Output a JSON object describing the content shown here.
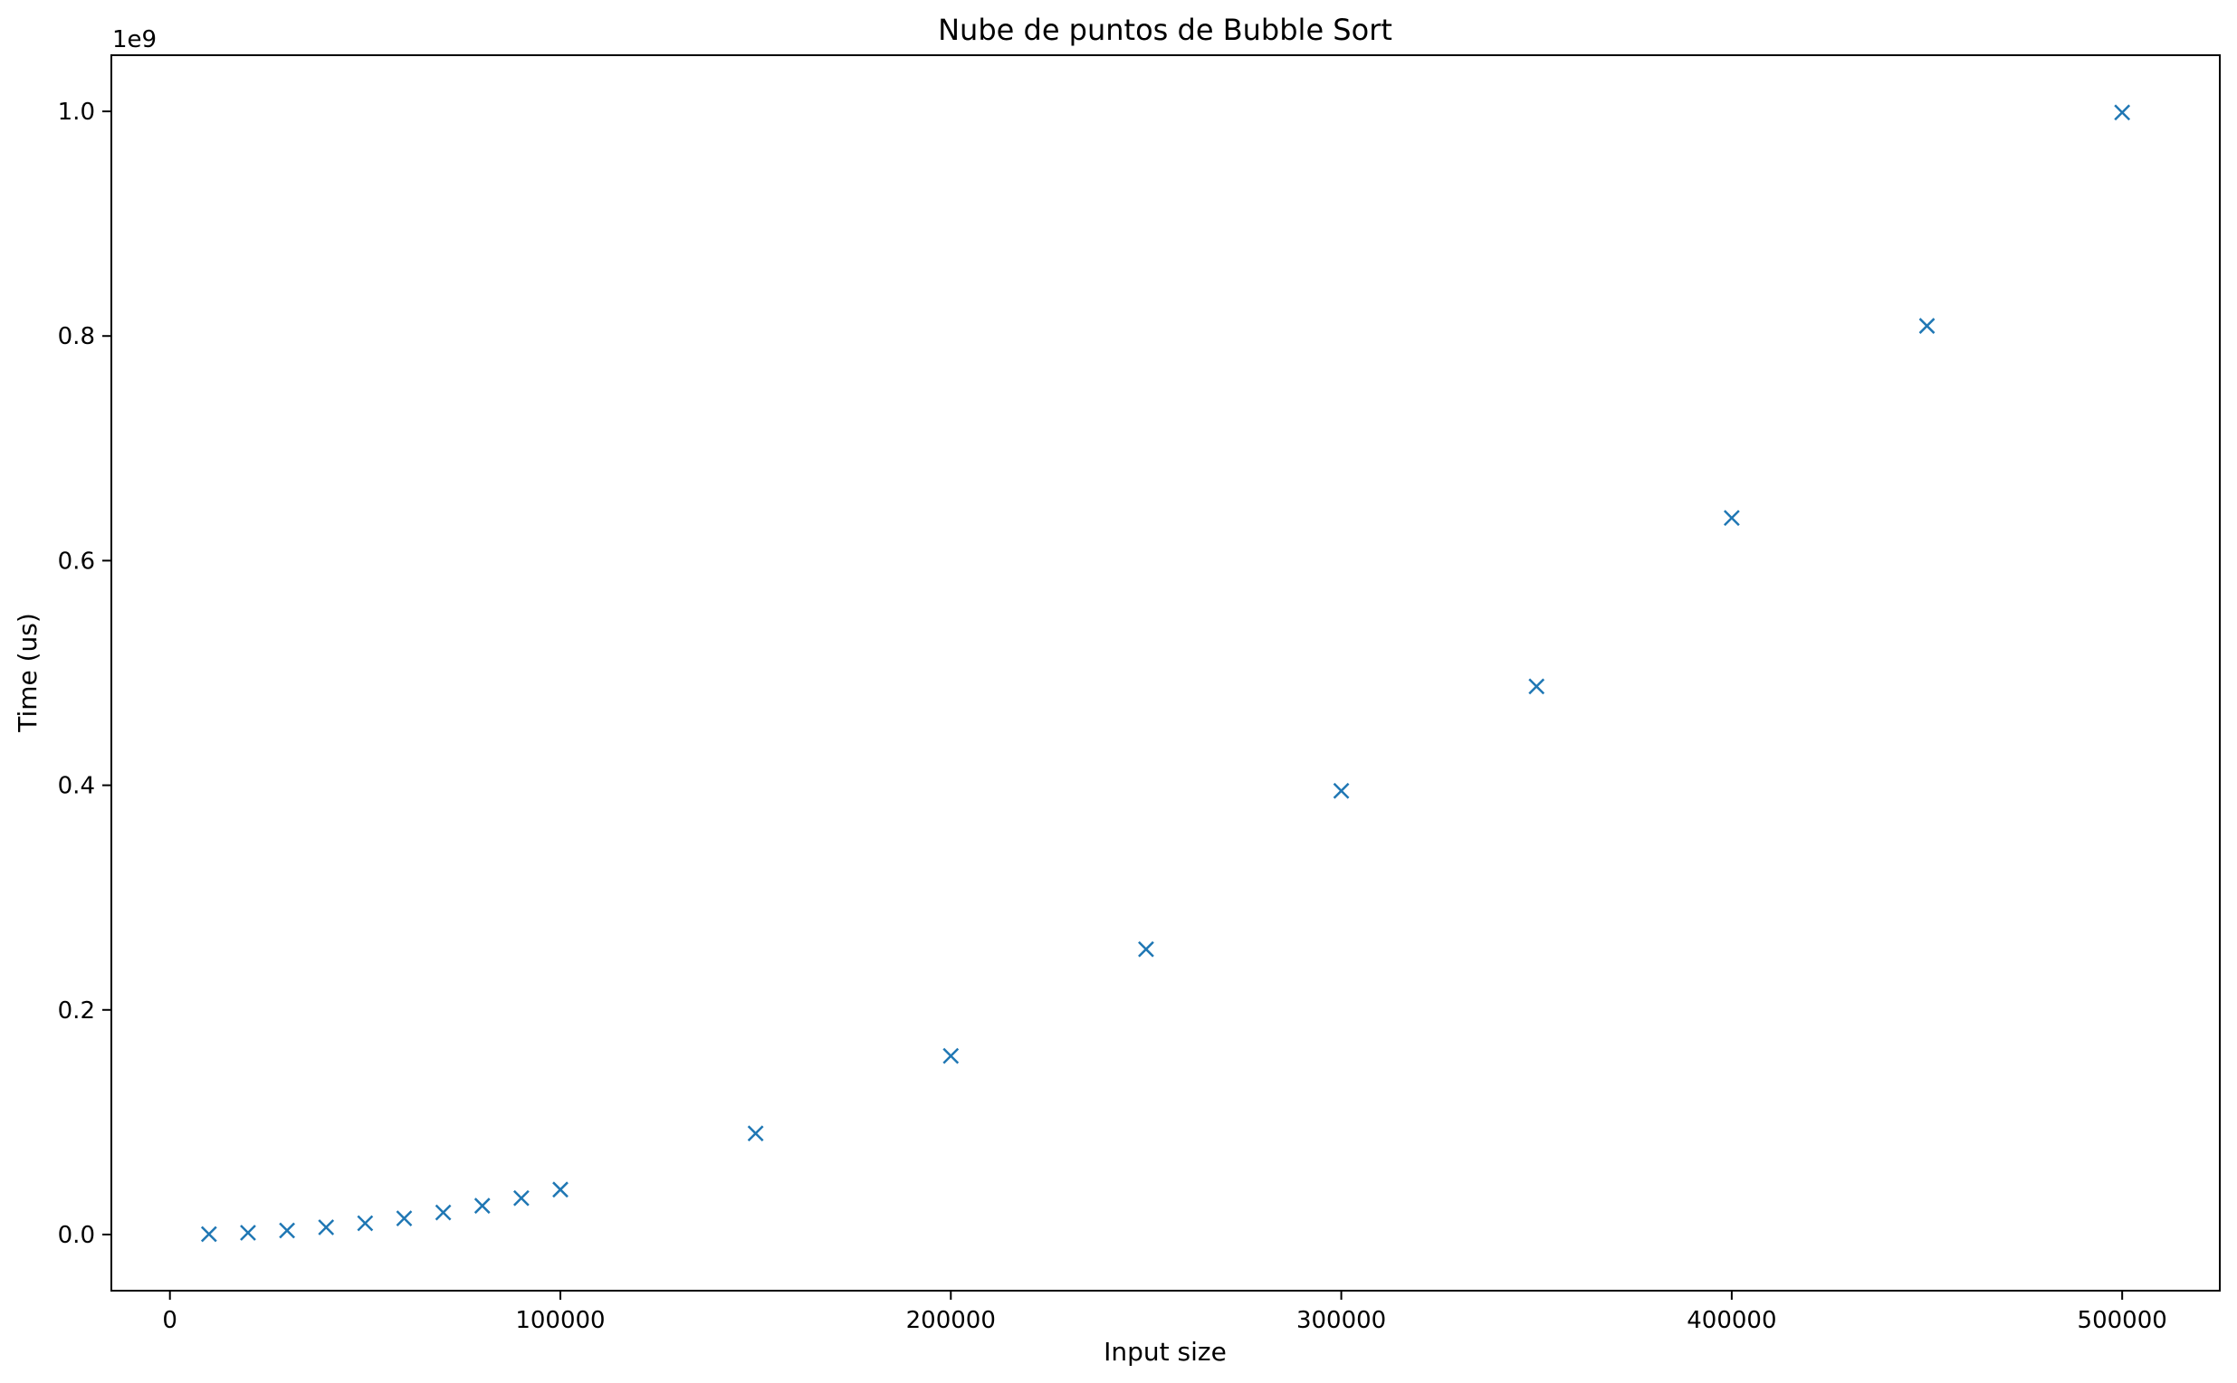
{
  "chart_data": {
    "type": "scatter",
    "title": "Nube de puntos de Bubble Sort",
    "xlabel": "Input size",
    "ylabel": "Time (us)",
    "y_offset_label": "1e9",
    "xlim": [
      -15000,
      525000
    ],
    "ylim": [
      -0.05,
      1.05
    ],
    "x_ticks": [
      0,
      100000,
      200000,
      300000,
      400000,
      500000
    ],
    "x_tick_labels": [
      "0",
      "100000",
      "200000",
      "300000",
      "400000",
      "500000"
    ],
    "y_ticks": [
      0.0,
      0.2,
      0.4,
      0.6,
      0.8,
      1.0
    ],
    "y_tick_labels": [
      "0.0",
      "0.2",
      "0.4",
      "0.6",
      "0.8",
      "1.0"
    ],
    "grid": false,
    "marker": "x",
    "color": "#1f77b4",
    "series": [
      {
        "x": [
          10000,
          20000,
          30000,
          40000,
          50000,
          60000,
          70000,
          80000,
          90000,
          100000,
          150000,
          200000,
          250000,
          300000,
          350000,
          400000,
          450000,
          500000
        ],
        "y": [
          0.0004,
          0.0016,
          0.0036,
          0.0064,
          0.01,
          0.0144,
          0.0196,
          0.0256,
          0.0324,
          0.04,
          0.09,
          0.159,
          0.254,
          0.395,
          0.488,
          0.638,
          0.809,
          0.999
        ]
      }
    ]
  }
}
